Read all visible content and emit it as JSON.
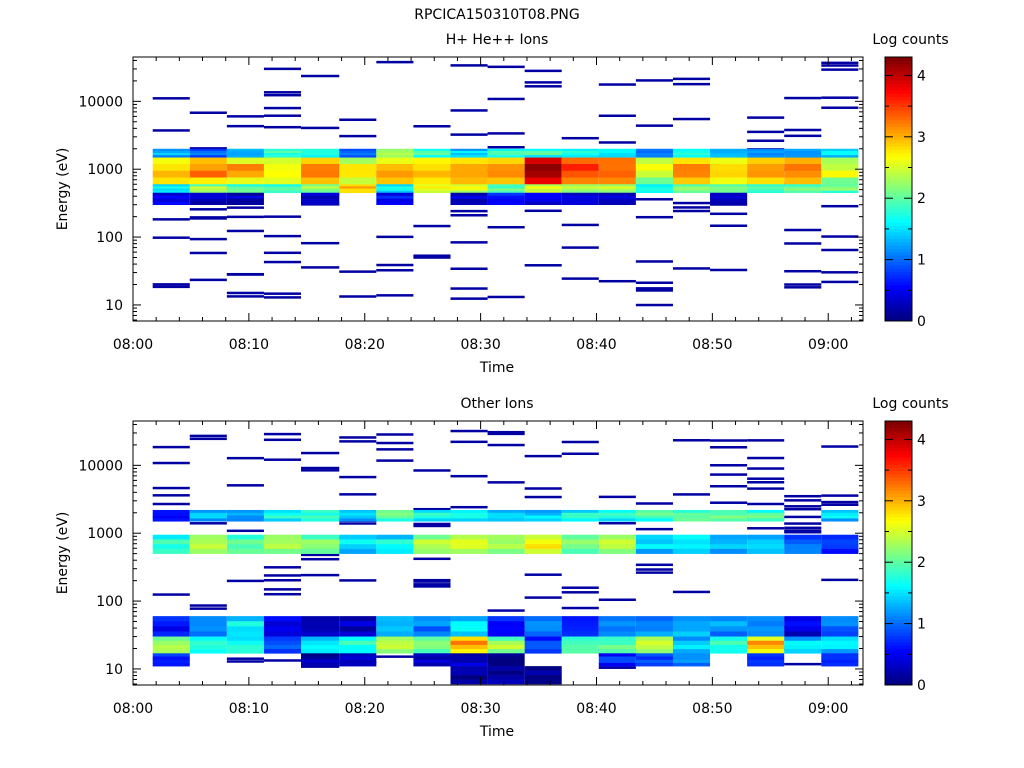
{
  "figure_title": "RPCICA150310T08.PNG",
  "chart_data": [
    {
      "type": "heatmap",
      "title": "H+ He++ Ions",
      "xlabel": "Time",
      "ylabel": "Energy (eV)",
      "colorbar_label": "Log counts",
      "x_ticks": [
        "08:00",
        "08:10",
        "08:20",
        "08:30",
        "08:40",
        "08:50",
        "09:00"
      ],
      "y_ticks": [
        "10",
        "100",
        "1000",
        "10000"
      ],
      "colorbar_ticks": [
        "0",
        "1",
        "2",
        "3",
        "4"
      ],
      "y_scale": "log",
      "xlim_minutes": [
        0,
        63
      ],
      "ylim_eV": [
        5.8,
        45000
      ],
      "zlim": [
        0,
        4.3
      ],
      "colormap": "jet",
      "x_bins_minutes": [
        [
          1.7,
          4.9
        ],
        [
          4.9,
          8.1
        ],
        [
          8.1,
          11.3
        ],
        [
          11.3,
          14.5
        ],
        [
          14.5,
          17.8
        ],
        [
          17.8,
          21.0
        ],
        [
          21.0,
          24.2
        ],
        [
          24.2,
          27.4
        ],
        [
          27.4,
          30.6
        ],
        [
          30.6,
          33.8
        ],
        [
          33.8,
          37.0
        ],
        [
          37.0,
          40.2
        ],
        [
          40.2,
          43.4
        ],
        [
          43.4,
          46.6
        ],
        [
          46.6,
          49.8
        ],
        [
          49.8,
          53.0
        ],
        [
          53.0,
          56.2
        ],
        [
          56.2,
          59.4
        ],
        [
          59.4,
          62.6
        ]
      ],
      "bands": [
        {
          "e": [
            600,
            1500
          ],
          "z": [
            2.8,
            3.1,
            2.9,
            2.7,
            3.2,
            2.6,
            2.9,
            2.8,
            3.1,
            3.0,
            4.0,
            3.4,
            3.3,
            2.4,
            2.9,
            2.8,
            3.0,
            3.1,
            2.4
          ]
        },
        {
          "e": [
            450,
            600
          ],
          "z": [
            1.5,
            2.2,
            2.0,
            1.9,
            2.2,
            2.8,
            1.5,
            2.6,
            2.5,
            1.9,
            2.5,
            2.2,
            2.3,
            1.8,
            2.0,
            2.1,
            2.0,
            2.0,
            2.0
          ]
        },
        {
          "e": [
            1500,
            2000
          ],
          "z": [
            1.3,
            1.0,
            1.2,
            1.8,
            1.7,
            1.0,
            2.3,
            1.8,
            1.4,
            1.7,
            1.8,
            1.6,
            1.5,
            1.0,
            1.6,
            1.4,
            1.2,
            1.2,
            1.4
          ]
        },
        {
          "e": [
            300,
            450
          ],
          "z": [
            0.4,
            0.2,
            0.2,
            null,
            0.4,
            null,
            0.6,
            null,
            0.3,
            0.6,
            0.5,
            0.4,
            0.4,
            null,
            null,
            0.4,
            null,
            null,
            null
          ]
        }
      ],
      "sparse_counts_z": 0.15
    },
    {
      "type": "heatmap",
      "title": "Other Ions",
      "xlabel": "Time",
      "ylabel": "Energy (eV)",
      "colorbar_label": "Log counts",
      "x_ticks": [
        "08:00",
        "08:10",
        "08:20",
        "08:30",
        "08:40",
        "08:50",
        "09:00"
      ],
      "y_ticks": [
        "10",
        "100",
        "1000",
        "10000"
      ],
      "colorbar_ticks": [
        "0",
        "1",
        "2",
        "3",
        "4"
      ],
      "y_scale": "log",
      "xlim_minutes": [
        0,
        63
      ],
      "ylim_eV": [
        5.8,
        45000
      ],
      "zlim": [
        0,
        4.3
      ],
      "colormap": "jet",
      "x_bins_minutes": [
        [
          1.7,
          4.9
        ],
        [
          4.9,
          8.1
        ],
        [
          8.1,
          11.3
        ],
        [
          11.3,
          14.5
        ],
        [
          14.5,
          17.8
        ],
        [
          17.8,
          21.0
        ],
        [
          21.0,
          24.2
        ],
        [
          24.2,
          27.4
        ],
        [
          27.4,
          30.6
        ],
        [
          30.6,
          33.8
        ],
        [
          33.8,
          37.0
        ],
        [
          37.0,
          40.2
        ],
        [
          40.2,
          43.4
        ],
        [
          43.4,
          46.6
        ],
        [
          46.6,
          49.8
        ],
        [
          49.8,
          53.0
        ],
        [
          53.0,
          56.2
        ],
        [
          56.2,
          59.4
        ],
        [
          59.4,
          62.6
        ]
      ],
      "bands": [
        {
          "e": [
            1500,
            2200
          ],
          "z": [
            0.6,
            1.3,
            1.2,
            1.7,
            1.8,
            1.4,
            2.0,
            1.6,
            1.6,
            1.4,
            1.4,
            1.6,
            1.7,
            1.9,
            2.0,
            1.9,
            1.9,
            null,
            1.4
          ]
        },
        {
          "e": [
            500,
            950
          ],
          "z": [
            1.8,
            2.3,
            2.0,
            2.2,
            2.0,
            1.5,
            1.6,
            2.2,
            2.4,
            2.3,
            2.7,
            2.2,
            2.4,
            1.4,
            1.6,
            1.3,
            1.5,
            1.0,
            0.8
          ]
        },
        {
          "e": [
            30,
            60
          ],
          "z": [
            0.6,
            1.1,
            1.5,
            0.5,
            0.2,
            0.3,
            1.3,
            1.0,
            1.5,
            0.6,
            1.0,
            0.8,
            1.1,
            1.2,
            1.3,
            1.1,
            1.0,
            0.4,
            1.0
          ]
        },
        {
          "e": [
            17,
            30
          ],
          "z": [
            2.3,
            1.6,
            1.7,
            0.8,
            1.6,
            1.7,
            2.4,
            2.0,
            3.0,
            2.2,
            0.7,
            2.0,
            1.9,
            2.4,
            1.3,
            1.8,
            2.9,
            1.4,
            1.4
          ]
        },
        {
          "e": [
            11,
            17
          ],
          "z": [
            0.7,
            null,
            null,
            null,
            0.2,
            0.2,
            null,
            0.3,
            0.3,
            0.1,
            null,
            null,
            0.7,
            0.8,
            1.1,
            null,
            0.6,
            null,
            0.6
          ]
        },
        {
          "e": [
            6,
            11
          ],
          "z": [
            null,
            null,
            null,
            null,
            null,
            null,
            null,
            null,
            0.1,
            0.1,
            0.1,
            null,
            null,
            null,
            null,
            null,
            null,
            null,
            null
          ]
        }
      ],
      "sparse_counts_z": 0.15
    }
  ]
}
